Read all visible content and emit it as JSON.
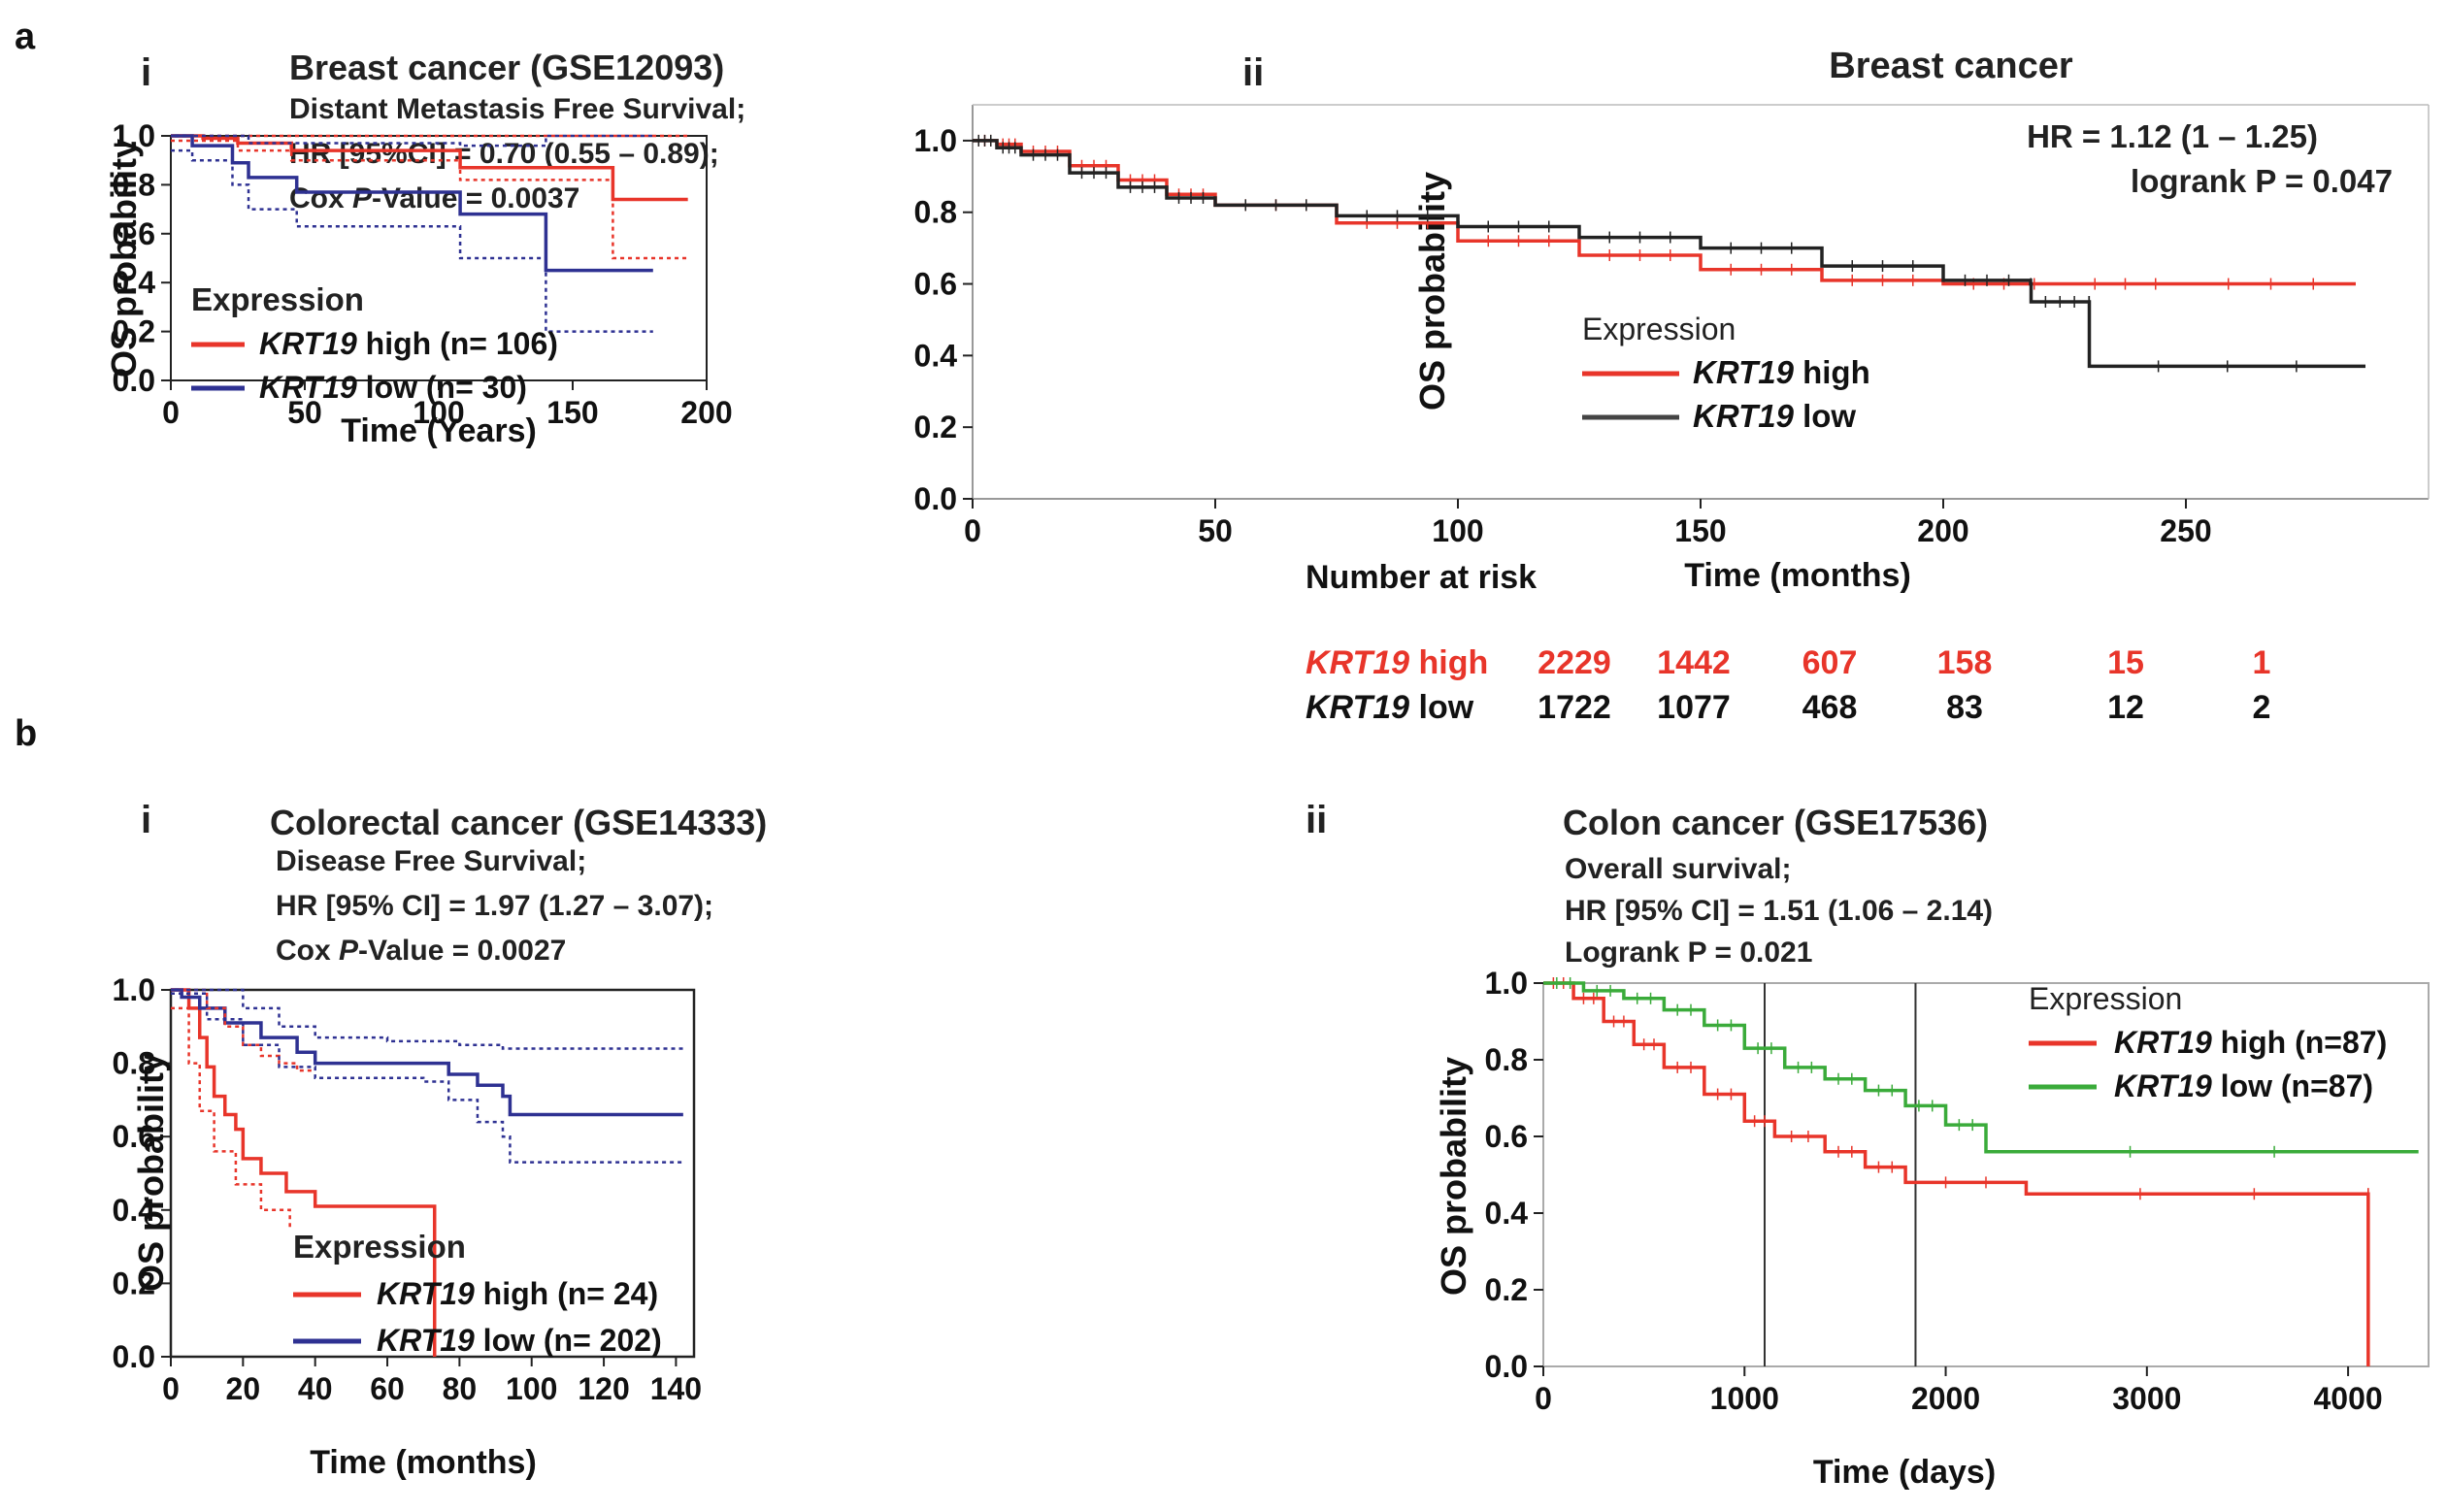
{
  "panel_letters": {
    "a": "a",
    "b": "b"
  },
  "chart_data": [
    {
      "id": "ai",
      "sub_label": "i",
      "type": "line",
      "title": "Breast cancer (GSE12093)",
      "subtitle_lines": [
        {
          "parts": [
            {
              "t": "Distant Metastasis Free Survival;"
            }
          ]
        },
        {
          "parts": [
            {
              "t": "HR [95%CI]  = 0.70 (0.55 – 0.89);"
            }
          ]
        },
        {
          "parts": [
            {
              "t": "Cox "
            },
            {
              "t": "P",
              "i": true
            },
            {
              "t": "-Value = 0.0037"
            }
          ]
        }
      ],
      "xlabel": "Time (Years)",
      "ylabel": "OS probability",
      "xlim": [
        0,
        200
      ],
      "ylim": [
        0,
        1
      ],
      "xticks": [
        0,
        50,
        100,
        150,
        200
      ],
      "xtick_labels": [
        "0",
        "50",
        "100",
        "150",
        "200"
      ],
      "yticks": [
        0,
        0.2,
        0.4,
        0.6,
        0.8,
        1.0
      ],
      "ytick_labels": [
        "0.0",
        "0.2",
        "0.4",
        "0.6",
        "0.8",
        "1.0"
      ],
      "legend_title": "Expression",
      "legend": [
        {
          "name": "KRT19",
          "suffix": " high (n= 106)",
          "color": "#e8352a"
        },
        {
          "name": "KRT19",
          "suffix": " low (n= 30)",
          "color": "#2e3192"
        }
      ],
      "series": [
        {
          "name": "KRT19 high",
          "color": "#e8352a",
          "x": [
            0,
            12,
            25,
            45,
            108,
            165,
            193
          ],
          "y": [
            1.0,
            0.99,
            0.97,
            0.94,
            0.87,
            0.74,
            0.74
          ]
        },
        {
          "name": "KRT19 low",
          "color": "#2e3192",
          "x": [
            0,
            8,
            23,
            29,
            47,
            108,
            140,
            180
          ],
          "y": [
            1.0,
            0.96,
            0.89,
            0.83,
            0.77,
            0.68,
            0.45,
            0.45
          ]
        },
        {
          "name": "KRT19 high upper CI",
          "color": "#e8352a",
          "dotted": true,
          "x": [
            0,
            165,
            193
          ],
          "y": [
            1.0,
            1.0,
            1.0
          ]
        },
        {
          "name": "KRT19 high lower CI",
          "color": "#e8352a",
          "dotted": true,
          "x": [
            0,
            25,
            45,
            108,
            165,
            193
          ],
          "y": [
            0.98,
            0.94,
            0.9,
            0.82,
            0.5,
            0.5
          ]
        },
        {
          "name": "KRT19 low upper CI",
          "color": "#2e3192",
          "dotted": true,
          "x": [
            0,
            29,
            108,
            140,
            180
          ],
          "y": [
            1.0,
            0.97,
            0.96,
            1.0,
            1.0
          ]
        },
        {
          "name": "KRT19 low lower CI",
          "color": "#2e3192",
          "dotted": true,
          "x": [
            0,
            8,
            23,
            29,
            47,
            108,
            140,
            180
          ],
          "y": [
            0.94,
            0.9,
            0.8,
            0.7,
            0.63,
            0.5,
            0.2,
            0.2
          ]
        }
      ]
    },
    {
      "id": "aii",
      "sub_label": "ii",
      "type": "line",
      "title": "Breast cancer",
      "annotations": [
        "HR = 1.12 (1 – 1.25)",
        "logrank P = 0.047"
      ],
      "xlabel": "Time (months)",
      "ylabel": "OS probability",
      "xlim": [
        0,
        300
      ],
      "ylim": [
        0,
        1.1
      ],
      "xticks": [
        0,
        50,
        100,
        150,
        200,
        250
      ],
      "xtick_labels": [
        "0",
        "50",
        "100",
        "150",
        "200",
        "250"
      ],
      "yticks": [
        0,
        0.2,
        0.4,
        0.6,
        0.8,
        1.0
      ],
      "ytick_labels": [
        "0.0",
        "0.2",
        "0.4",
        "0.6",
        "0.8",
        "1.0"
      ],
      "legend_title": "Expression",
      "legend": [
        {
          "name": "KRT19",
          "suffix": " high",
          "color": "#e8352a"
        },
        {
          "name": "KRT19",
          "suffix": " low",
          "color": "#444444"
        }
      ],
      "series": [
        {
          "name": "KRT19 high",
          "color": "#e8352a",
          "x": [
            0,
            5,
            10,
            20,
            30,
            40,
            50,
            75,
            100,
            125,
            150,
            175,
            200,
            225,
            250,
            285
          ],
          "y": [
            1.0,
            0.99,
            0.97,
            0.93,
            0.89,
            0.85,
            0.82,
            0.77,
            0.72,
            0.68,
            0.64,
            0.61,
            0.6,
            0.6,
            0.6,
            0.6
          ]
        },
        {
          "name": "KRT19 low",
          "color": "#222222",
          "x": [
            0,
            5,
            10,
            20,
            30,
            40,
            50,
            75,
            100,
            125,
            150,
            175,
            200,
            218,
            218.1,
            230,
            230.1,
            287
          ],
          "y": [
            1.0,
            0.98,
            0.96,
            0.91,
            0.87,
            0.84,
            0.82,
            0.79,
            0.76,
            0.73,
            0.7,
            0.65,
            0.61,
            0.6,
            0.55,
            0.55,
            0.37,
            0.37
          ]
        }
      ],
      "risk_table": {
        "title": "Number at risk",
        "rows": [
          {
            "name": "KRT19",
            "suffix": " high",
            "color": "#e8352a",
            "values": [
              "2229",
              "1442",
              "607",
              "158",
              "15",
              "1"
            ]
          },
          {
            "name": "KRT19",
            "suffix": " low",
            "color": "#111111",
            "values": [
              "1722",
              "1077",
              "468",
              "83",
              "12",
              "2"
            ]
          }
        ]
      }
    },
    {
      "id": "bi",
      "sub_label": "i",
      "type": "line",
      "title": "Colorectal cancer (GSE14333)",
      "subtitle_lines": [
        {
          "parts": [
            {
              "t": "Disease Free Survival;"
            }
          ]
        },
        {
          "parts": [
            {
              "t": "HR [95% CI] = 1.97 (1.27 – 3.07);"
            }
          ]
        },
        {
          "parts": [
            {
              "t": "Cox "
            },
            {
              "t": "P",
              "i": true
            },
            {
              "t": "-Value = 0.0027"
            }
          ]
        }
      ],
      "xlabel": "Time (months)",
      "ylabel": "OS probability",
      "xlim": [
        0,
        145
      ],
      "ylim": [
        0,
        1
      ],
      "xticks": [
        0,
        20,
        40,
        60,
        80,
        100,
        120,
        140
      ],
      "xtick_labels": [
        "0",
        "20",
        "40",
        "60",
        "80",
        "100",
        "120",
        "140"
      ],
      "yticks": [
        0,
        0.2,
        0.4,
        0.6,
        0.8,
        1.0
      ],
      "ytick_labels": [
        "0.0",
        "0.2",
        "0.4",
        "0.6",
        "0.8",
        "1.0"
      ],
      "legend_title": "Expression",
      "legend": [
        {
          "name": "KRT19",
          "suffix": " high (n= 24)",
          "color": "#e8352a"
        },
        {
          "name": "KRT19",
          "suffix": " low (n= 202)",
          "color": "#2e3192"
        }
      ],
      "series": [
        {
          "name": "KRT19 high",
          "color": "#e8352a",
          "x": [
            0,
            5,
            8,
            10,
            12,
            15,
            18,
            20,
            25,
            32,
            40,
            60,
            73,
            73.1
          ],
          "y": [
            1.0,
            0.95,
            0.87,
            0.79,
            0.71,
            0.66,
            0.62,
            0.54,
            0.5,
            0.45,
            0.41,
            0.41,
            0.41,
            0.0
          ]
        },
        {
          "name": "KRT19 low",
          "color": "#2e3192",
          "x": [
            0,
            3,
            8,
            15,
            25,
            35,
            40,
            70,
            77,
            85,
            92,
            94,
            142
          ],
          "y": [
            1.0,
            0.98,
            0.95,
            0.91,
            0.87,
            0.83,
            0.8,
            0.8,
            0.77,
            0.74,
            0.71,
            0.66,
            0.66
          ]
        },
        {
          "name": "KRT19 high upper CI",
          "color": "#e8352a",
          "dotted": true,
          "x": [
            0,
            10,
            15,
            20,
            25,
            30,
            35,
            40
          ],
          "y": [
            1.0,
            0.95,
            0.9,
            0.85,
            0.82,
            0.8,
            0.78,
            0.78
          ]
        },
        {
          "name": "KRT19 high lower CI",
          "color": "#e8352a",
          "dotted": true,
          "x": [
            0,
            5,
            8,
            12,
            18,
            25,
            33
          ],
          "y": [
            0.95,
            0.8,
            0.67,
            0.56,
            0.47,
            0.4,
            0.35
          ]
        },
        {
          "name": "KRT19 low upper CI",
          "color": "#2e3192",
          "dotted": true,
          "x": [
            0,
            10,
            20,
            30,
            40,
            60,
            80,
            92,
            142
          ],
          "y": [
            1.0,
            1.0,
            0.95,
            0.9,
            0.87,
            0.86,
            0.85,
            0.84,
            0.84
          ]
        },
        {
          "name": "KRT19 low lower CI",
          "color": "#2e3192",
          "dotted": true,
          "x": [
            0,
            10,
            20,
            30,
            40,
            70,
            77,
            85,
            92,
            94,
            142
          ],
          "y": [
            0.99,
            0.92,
            0.85,
            0.79,
            0.76,
            0.75,
            0.7,
            0.64,
            0.6,
            0.53,
            0.53
          ]
        }
      ]
    },
    {
      "id": "bii",
      "sub_label": "ii",
      "type": "line",
      "title": "Colon cancer (GSE17536)",
      "subtitle_lines": [
        {
          "parts": [
            {
              "t": "Overall survival;"
            }
          ]
        },
        {
          "parts": [
            {
              "t": "HR [95% CI] = 1.51 (1.06 – 2.14)"
            }
          ]
        },
        {
          "parts": [
            {
              "t": "Logrank P = 0.021"
            }
          ]
        }
      ],
      "xlabel": "Time (days)",
      "ylabel": "OS probability",
      "xlim": [
        0,
        4400
      ],
      "ylim": [
        0,
        1
      ],
      "xticks": [
        0,
        1000,
        2000,
        3000,
        4000
      ],
      "xtick_labels": [
        "0",
        "1000",
        "2000",
        "3000",
        "4000"
      ],
      "yticks": [
        0,
        0.2,
        0.4,
        0.6,
        0.8,
        1.0
      ],
      "ytick_labels": [
        "0.0",
        "0.2",
        "0.4",
        "0.6",
        "0.8",
        "1.0"
      ],
      "vlines": [
        1100,
        1850
      ],
      "legend_title": "Expression",
      "legend": [
        {
          "name": "KRT19",
          "suffix": " high (n=87)",
          "color": "#e8352a"
        },
        {
          "name": "KRT19",
          "suffix": " low (n=87)",
          "color": "#3aab3a"
        }
      ],
      "series": [
        {
          "name": "KRT19 high",
          "color": "#e8352a",
          "x": [
            0,
            150,
            300,
            450,
            600,
            800,
            1000,
            1150,
            1400,
            1600,
            1800,
            2400,
            4100,
            4100.1
          ],
          "y": [
            1.0,
            0.96,
            0.9,
            0.84,
            0.78,
            0.71,
            0.64,
            0.6,
            0.56,
            0.52,
            0.48,
            0.45,
            0.45,
            0.0
          ]
        },
        {
          "name": "KRT19 low",
          "color": "#3aab3a",
          "x": [
            0,
            200,
            400,
            600,
            800,
            1000,
            1200,
            1400,
            1600,
            1800,
            2000,
            2200,
            4350
          ],
          "y": [
            1.0,
            0.98,
            0.96,
            0.93,
            0.89,
            0.83,
            0.78,
            0.75,
            0.72,
            0.68,
            0.63,
            0.56,
            0.56
          ]
        }
      ]
    }
  ]
}
